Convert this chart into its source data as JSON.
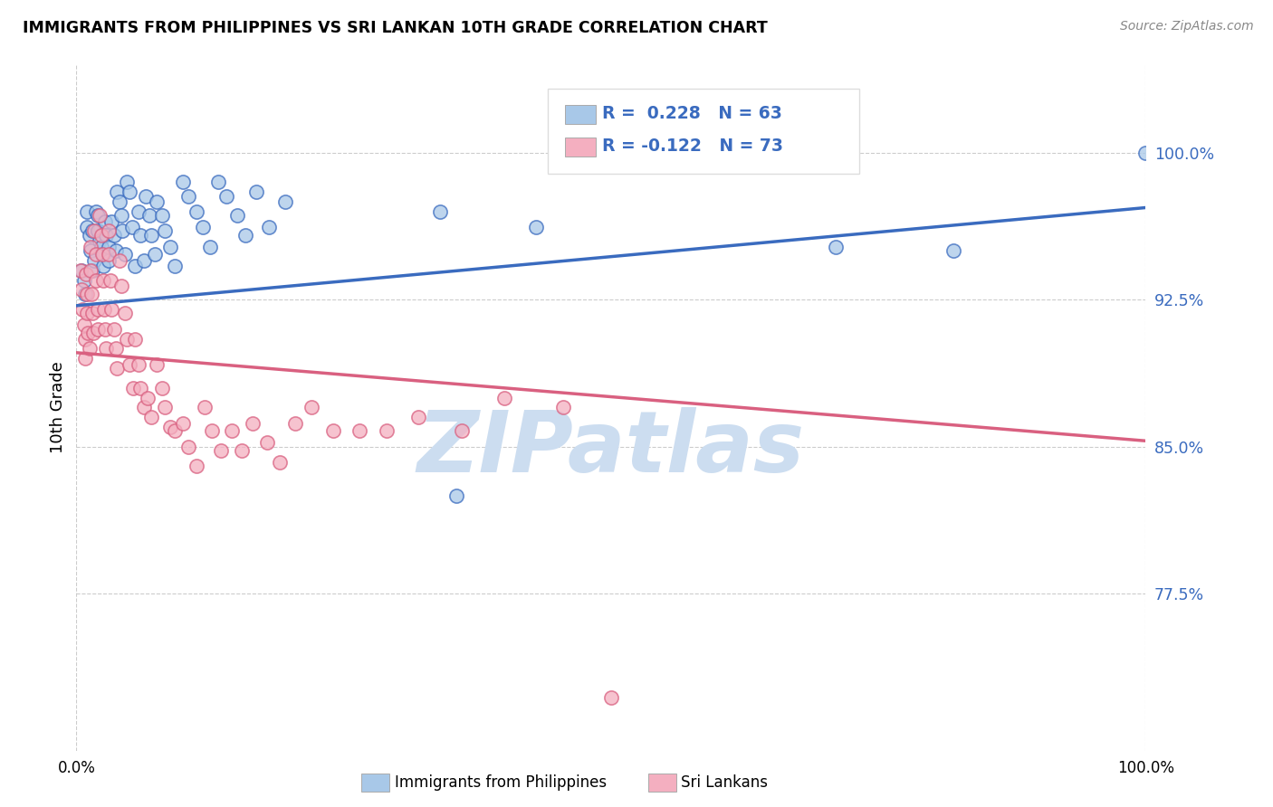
{
  "title": "IMMIGRANTS FROM PHILIPPINES VS SRI LANKAN 10TH GRADE CORRELATION CHART",
  "source": "Source: ZipAtlas.com",
  "ylabel": "10th Grade",
  "yticks": [
    "77.5%",
    "85.0%",
    "92.5%",
    "100.0%"
  ],
  "ytick_vals": [
    0.775,
    0.85,
    0.925,
    1.0
  ],
  "xlim": [
    0.0,
    1.0
  ],
  "ylim": [
    0.695,
    1.045
  ],
  "blue_R": 0.228,
  "blue_N": 63,
  "pink_R": -0.122,
  "pink_N": 73,
  "blue_color": "#a8c8e8",
  "pink_color": "#f4afc0",
  "blue_line_color": "#3a6bbf",
  "pink_line_color": "#d96080",
  "watermark": "ZIPatlas",
  "watermark_color": "#ccddf0",
  "blue_line_x0": 0.0,
  "blue_line_y0": 0.922,
  "blue_line_x1": 1.0,
  "blue_line_y1": 0.972,
  "pink_line_x0": 0.0,
  "pink_line_y0": 0.898,
  "pink_line_x1": 1.0,
  "pink_line_y1": 0.853,
  "blue_scatter_x": [
    0.005,
    0.007,
    0.008,
    0.01,
    0.01,
    0.012,
    0.013,
    0.015,
    0.015,
    0.017,
    0.018,
    0.02,
    0.02,
    0.022,
    0.023,
    0.025,
    0.025,
    0.027,
    0.028,
    0.03,
    0.03,
    0.033,
    0.035,
    0.037,
    0.038,
    0.04,
    0.042,
    0.043,
    0.045,
    0.047,
    0.05,
    0.052,
    0.055,
    0.058,
    0.06,
    0.063,
    0.065,
    0.068,
    0.07,
    0.073,
    0.075,
    0.08,
    0.083,
    0.088,
    0.092,
    0.1,
    0.105,
    0.112,
    0.118,
    0.125,
    0.133,
    0.14,
    0.15,
    0.158,
    0.168,
    0.18,
    0.195,
    0.34,
    0.355,
    0.43,
    0.71,
    0.82,
    1.0
  ],
  "blue_scatter_y": [
    0.94,
    0.935,
    0.928,
    0.962,
    0.97,
    0.958,
    0.95,
    0.94,
    0.96,
    0.945,
    0.97,
    0.968,
    0.96,
    0.955,
    0.952,
    0.948,
    0.942,
    0.965,
    0.958,
    0.952,
    0.945,
    0.965,
    0.958,
    0.95,
    0.98,
    0.975,
    0.968,
    0.96,
    0.948,
    0.985,
    0.98,
    0.962,
    0.942,
    0.97,
    0.958,
    0.945,
    0.978,
    0.968,
    0.958,
    0.948,
    0.975,
    0.968,
    0.96,
    0.952,
    0.942,
    0.985,
    0.978,
    0.97,
    0.962,
    0.952,
    0.985,
    0.978,
    0.968,
    0.958,
    0.98,
    0.962,
    0.975,
    0.97,
    0.825,
    0.962,
    0.952,
    0.95,
    1.0
  ],
  "pink_scatter_x": [
    0.004,
    0.005,
    0.006,
    0.007,
    0.008,
    0.008,
    0.009,
    0.01,
    0.01,
    0.011,
    0.012,
    0.013,
    0.013,
    0.014,
    0.015,
    0.016,
    0.017,
    0.018,
    0.018,
    0.02,
    0.02,
    0.022,
    0.023,
    0.024,
    0.025,
    0.026,
    0.027,
    0.028,
    0.03,
    0.03,
    0.032,
    0.033,
    0.035,
    0.037,
    0.038,
    0.04,
    0.042,
    0.045,
    0.047,
    0.05,
    0.053,
    0.055,
    0.058,
    0.06,
    0.063,
    0.067,
    0.07,
    0.075,
    0.08,
    0.083,
    0.088,
    0.092,
    0.1,
    0.105,
    0.112,
    0.12,
    0.127,
    0.135,
    0.145,
    0.155,
    0.165,
    0.178,
    0.19,
    0.205,
    0.22,
    0.24,
    0.265,
    0.29,
    0.32,
    0.36,
    0.4,
    0.455,
    0.5
  ],
  "pink_scatter_y": [
    0.94,
    0.93,
    0.92,
    0.912,
    0.905,
    0.895,
    0.938,
    0.928,
    0.918,
    0.908,
    0.9,
    0.952,
    0.94,
    0.928,
    0.918,
    0.908,
    0.96,
    0.948,
    0.935,
    0.92,
    0.91,
    0.968,
    0.958,
    0.948,
    0.935,
    0.92,
    0.91,
    0.9,
    0.96,
    0.948,
    0.935,
    0.92,
    0.91,
    0.9,
    0.89,
    0.945,
    0.932,
    0.918,
    0.905,
    0.892,
    0.88,
    0.905,
    0.892,
    0.88,
    0.87,
    0.875,
    0.865,
    0.892,
    0.88,
    0.87,
    0.86,
    0.858,
    0.862,
    0.85,
    0.84,
    0.87,
    0.858,
    0.848,
    0.858,
    0.848,
    0.862,
    0.852,
    0.842,
    0.862,
    0.87,
    0.858,
    0.858,
    0.858,
    0.865,
    0.858,
    0.875,
    0.87,
    0.722
  ]
}
